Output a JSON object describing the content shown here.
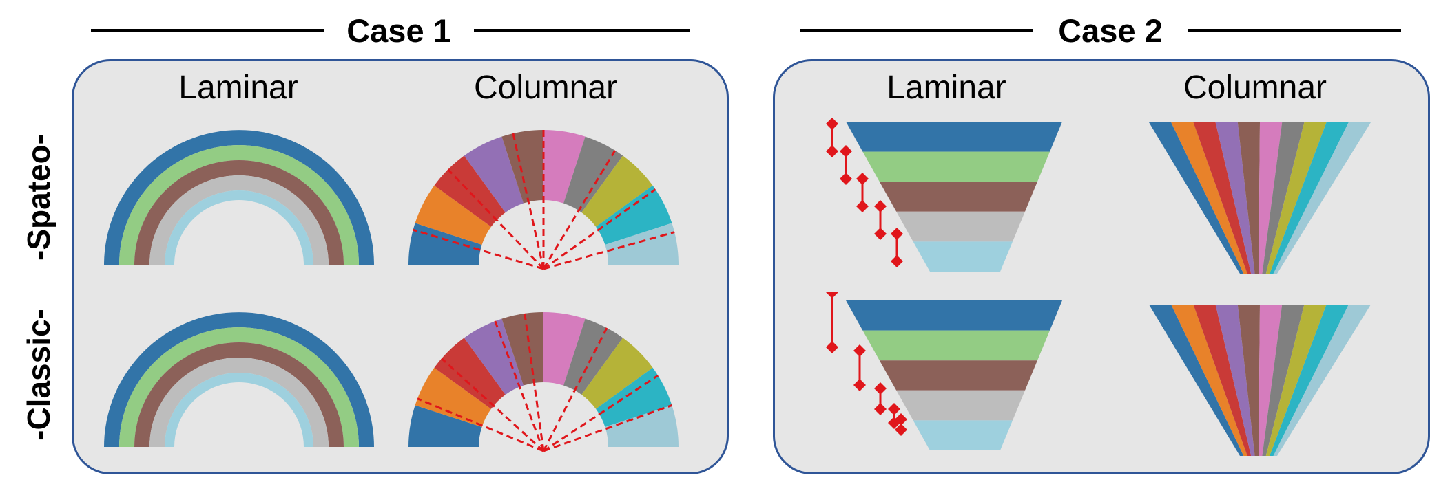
{
  "cases": [
    {
      "title": "Case 1",
      "columns": [
        "Laminar",
        "Columnar"
      ]
    },
    {
      "title": "Case 2",
      "columns": [
        "Laminar",
        "Columnar"
      ]
    }
  ],
  "rows": [
    "-Spateo-",
    "-Classic-"
  ],
  "colors": {
    "layers": [
      "#3274a8",
      "#93cc84",
      "#8c6159",
      "#bdbdbd",
      "#9ed0de"
    ],
    "columns": [
      "#3274a8",
      "#e8822a",
      "#c93a37",
      "#9370b5",
      "#8c5f55",
      "#d57cbd",
      "#808080",
      "#b5b338",
      "#2cb4c4",
      "#9ec9d6"
    ],
    "panel_bg": "#e6e6e6",
    "panel_border": "#2f5597",
    "dashed": "#e0161b",
    "marker": "#e0161b"
  }
}
